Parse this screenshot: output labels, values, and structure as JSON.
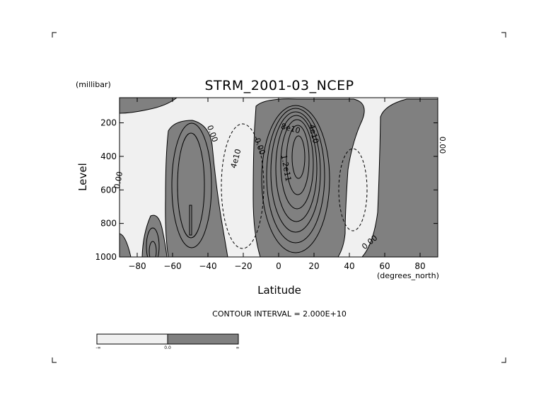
{
  "chart_data": {
    "type": "contour",
    "title": "STRM_2001-03_NCEP",
    "xlabel": "Latitude",
    "ylabel": "Level",
    "x_units": "(degrees_north)",
    "y_units": "(millibar)",
    "xlim": [
      -90,
      90
    ],
    "ylim": [
      1000,
      50
    ],
    "y_inverted": true,
    "x_ticks": [
      -80,
      -60,
      -40,
      -20,
      0,
      20,
      40,
      60,
      80
    ],
    "x_tick_labels": [
      "−80",
      "−60",
      "−40",
      "−20",
      "0",
      "20",
      "40",
      "60",
      "80"
    ],
    "y_ticks": [
      200,
      400,
      600,
      800,
      1000
    ],
    "y_tick_labels": [
      "200",
      "400",
      "600",
      "800",
      "1000"
    ],
    "contour_interval_text": "CONTOUR INTERVAL = 2.000E+10",
    "contour_labels": [
      "0.00",
      "0.00",
      "4e10",
      "0.00",
      "8e10",
      "4e10",
      "1.2e11",
      "0.00",
      "0.00"
    ],
    "colorbar": {
      "labels": [
        "-∞",
        "0.0",
        "∞"
      ],
      "colors": [
        "#f0f0f0",
        "#808080"
      ]
    },
    "colors": {
      "positive_fill": "#808080",
      "negative_fill": "#f0f0f0",
      "line": "#000000"
    },
    "regions": [
      {
        "sign": "positive",
        "center_lat": 7,
        "center_level": 350,
        "extreme_label": "1.2e11"
      },
      {
        "sign": "positive",
        "center_lat": -50,
        "center_level": 600
      },
      {
        "sign": "positive",
        "center_lat": -72,
        "center_level": 950
      },
      {
        "sign": "positive",
        "center_lat": 75,
        "center_level": 500
      },
      {
        "sign": "negative",
        "center_lat": -22,
        "center_level": 550,
        "extreme_label": "4e10"
      },
      {
        "sign": "negative",
        "center_lat": 42,
        "center_level": 550
      }
    ]
  }
}
